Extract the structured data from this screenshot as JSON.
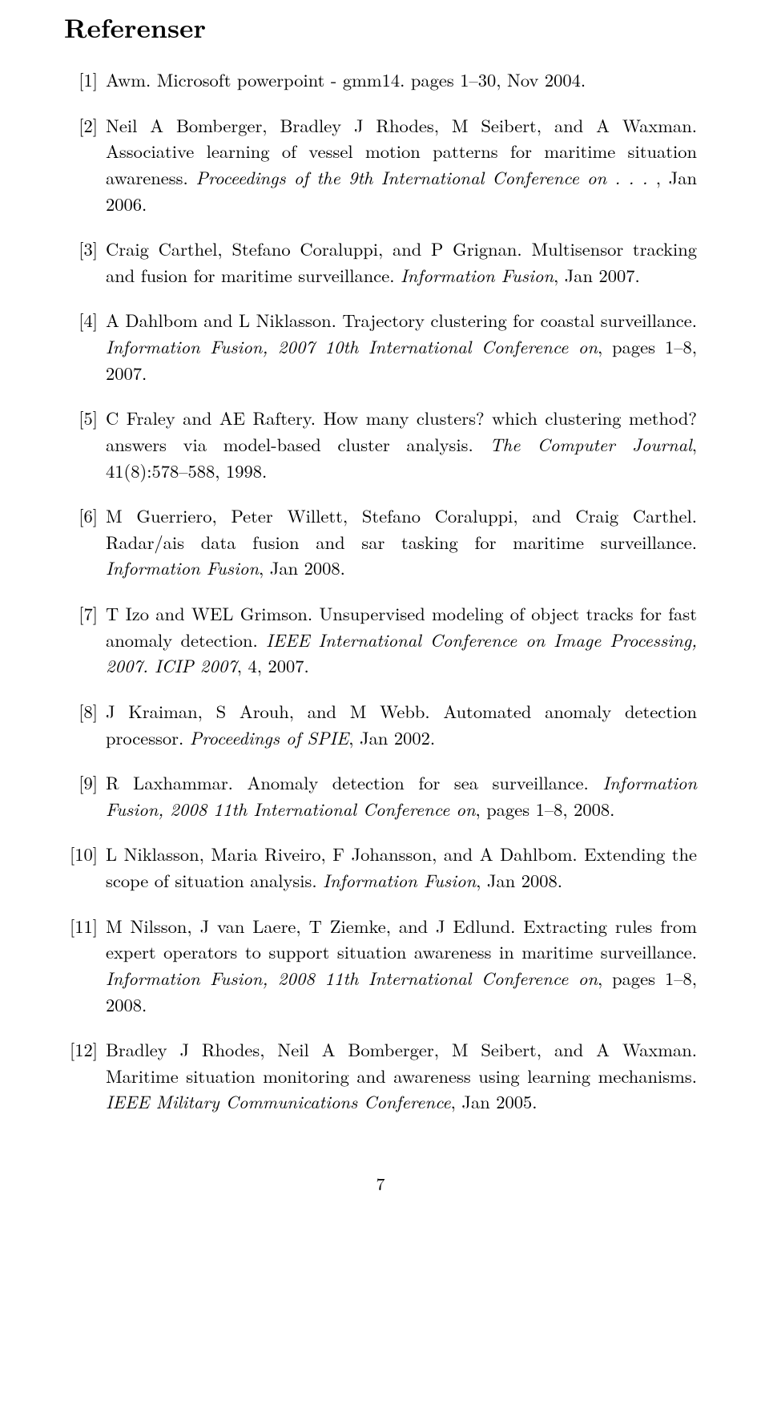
{
  "section_title": "Referenser",
  "page_number": "7",
  "references": [
    {
      "label": "[1]",
      "segments": [
        {
          "t": "Awm. Microsoft powerpoint - gmm14. pages 1–30, Nov 2004.",
          "i": false
        }
      ]
    },
    {
      "label": "[2]",
      "segments": [
        {
          "t": "Neil A Bomberger, Bradley J Rhodes, M Seibert, and A Waxman. Associative learning of vessel motion patterns for maritime situation awareness. ",
          "i": false
        },
        {
          "t": "Proceedings of the 9th International Conference on . . . ",
          "i": true
        },
        {
          "t": ", Jan 2006.",
          "i": false
        }
      ]
    },
    {
      "label": "[3]",
      "segments": [
        {
          "t": "Craig Carthel, Stefano Coraluppi, and P Grignan. Multisensor tracking and fusion for maritime surveillance. ",
          "i": false
        },
        {
          "t": "Information Fusion",
          "i": true
        },
        {
          "t": ", Jan 2007.",
          "i": false
        }
      ]
    },
    {
      "label": "[4]",
      "segments": [
        {
          "t": "A Dahlbom and L Niklasson. Trajectory clustering for coastal surveillance. ",
          "i": false
        },
        {
          "t": "Information Fusion, 2007 10th International Conference on",
          "i": true
        },
        {
          "t": ", pages 1–8, 2007.",
          "i": false
        }
      ]
    },
    {
      "label": "[5]",
      "segments": [
        {
          "t": "C Fraley and AE Raftery. How many clusters? which clustering method? answers via model-based cluster analysis. ",
          "i": false
        },
        {
          "t": "The Computer Journal",
          "i": true
        },
        {
          "t": ", 41(8):578–588, 1998.",
          "i": false
        }
      ]
    },
    {
      "label": "[6]",
      "segments": [
        {
          "t": "M Guerriero, Peter Willett, Stefano Coraluppi, and Craig Carthel. Radar/ais data fusion and sar tasking for maritime surveillance. ",
          "i": false
        },
        {
          "t": "Information Fusion",
          "i": true
        },
        {
          "t": ", Jan 2008.",
          "i": false
        }
      ]
    },
    {
      "label": "[7]",
      "segments": [
        {
          "t": "T Izo and WEL Grimson. Unsupervised modeling of object tracks for fast anomaly detection. ",
          "i": false
        },
        {
          "t": "IEEE International Conference on Image Processing, 2007. ICIP 2007",
          "i": true
        },
        {
          "t": ", 4, 2007.",
          "i": false
        }
      ]
    },
    {
      "label": "[8]",
      "segments": [
        {
          "t": "J Kraiman, S Arouh, and M Webb. Automated anomaly detection processor. ",
          "i": false
        },
        {
          "t": "Proceedings of SPIE",
          "i": true
        },
        {
          "t": ", Jan 2002.",
          "i": false
        }
      ]
    },
    {
      "label": "[9]",
      "segments": [
        {
          "t": "R Laxhammar. Anomaly detection for sea surveillance. ",
          "i": false
        },
        {
          "t": "Information Fusion, 2008 11th International Conference on",
          "i": true
        },
        {
          "t": ", pages 1–8, 2008.",
          "i": false
        }
      ]
    },
    {
      "label": "[10]",
      "segments": [
        {
          "t": "L Niklasson, Maria Riveiro, F Johansson, and A Dahlbom. Extending the scope of situation analysis. ",
          "i": false
        },
        {
          "t": "Information Fusion",
          "i": true
        },
        {
          "t": ", Jan 2008.",
          "i": false
        }
      ]
    },
    {
      "label": "[11]",
      "segments": [
        {
          "t": "M Nilsson, J van Laere, T Ziemke, and J Edlund. Extracting rules from expert operators to support situation awareness in maritime surveillance. ",
          "i": false
        },
        {
          "t": "Information Fusion, 2008 11th International Conference on",
          "i": true
        },
        {
          "t": ", pages 1–8, 2008.",
          "i": false
        }
      ]
    },
    {
      "label": "[12]",
      "segments": [
        {
          "t": "Bradley J Rhodes, Neil A Bomberger, M Seibert, and A Waxman. Maritime situation monitoring and awareness using learning mechanisms. ",
          "i": false
        },
        {
          "t": "IEEE Military Communications Conference",
          "i": true
        },
        {
          "t": ", Jan 2005.",
          "i": false
        }
      ]
    }
  ]
}
